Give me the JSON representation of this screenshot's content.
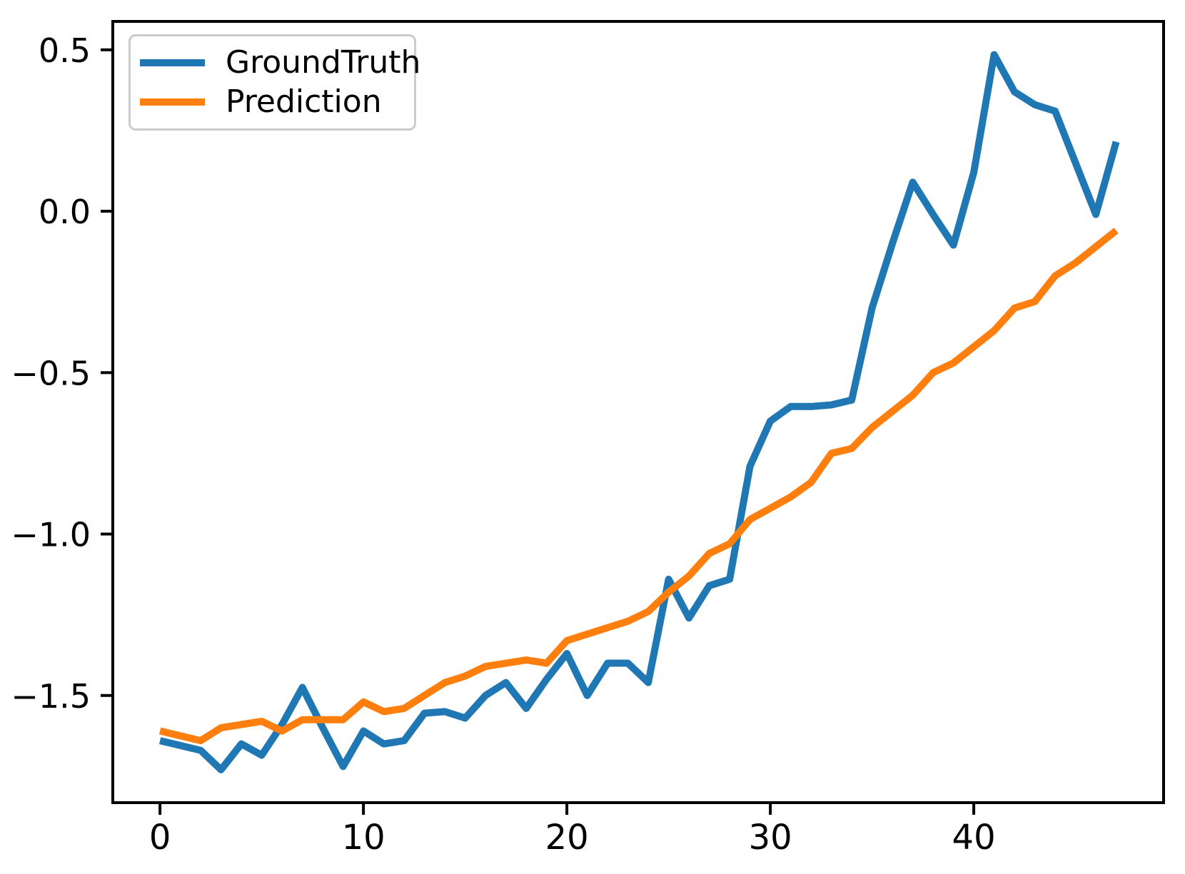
{
  "figure": {
    "background": "#ffffff",
    "axis_color": "#000000",
    "tick_label_color": "#000000"
  },
  "chart_data": {
    "type": "line",
    "title": "",
    "xlabel": "",
    "ylabel": "",
    "grid": false,
    "legend_position": "upper left",
    "x": [
      0,
      1,
      2,
      3,
      4,
      5,
      6,
      7,
      8,
      9,
      10,
      11,
      12,
      13,
      14,
      15,
      16,
      17,
      18,
      19,
      20,
      21,
      22,
      23,
      24,
      25,
      26,
      27,
      28,
      29,
      30,
      31,
      32,
      33,
      34,
      35,
      36,
      37,
      38,
      39,
      40,
      41,
      42,
      43,
      44,
      45,
      46,
      47
    ],
    "series": [
      {
        "name": "GroundTruth",
        "color": "#1f77b4",
        "values": [
          -1.64,
          -1.655,
          -1.67,
          -1.73,
          -1.65,
          -1.685,
          -1.59,
          -1.475,
          -1.6,
          -1.72,
          -1.61,
          -1.65,
          -1.64,
          -1.555,
          -1.55,
          -1.57,
          -1.5,
          -1.46,
          -1.54,
          -1.45,
          -1.37,
          -1.5,
          -1.4,
          -1.4,
          -1.46,
          -1.14,
          -1.26,
          -1.16,
          -1.14,
          -0.79,
          -0.65,
          -0.605,
          -0.605,
          -0.6,
          -0.585,
          -0.3,
          -0.1,
          0.09,
          -0.01,
          -0.105,
          0.12,
          0.485,
          0.37,
          0.33,
          0.31,
          0.15,
          -0.01,
          0.215
        ]
      },
      {
        "name": "Prediction",
        "color": "#ff7f0e",
        "values": [
          -1.61,
          -1.625,
          -1.64,
          -1.6,
          -1.59,
          -1.58,
          -1.61,
          -1.575,
          -1.575,
          -1.575,
          -1.52,
          -1.55,
          -1.54,
          -1.5,
          -1.46,
          -1.44,
          -1.41,
          -1.4,
          -1.39,
          -1.4,
          -1.33,
          -1.31,
          -1.29,
          -1.27,
          -1.24,
          -1.18,
          -1.13,
          -1.06,
          -1.03,
          -0.955,
          -0.92,
          -0.885,
          -0.84,
          -0.75,
          -0.735,
          -0.67,
          -0.62,
          -0.57,
          -0.5,
          -0.47,
          -0.42,
          -0.37,
          -0.3,
          -0.28,
          -0.2,
          -0.16,
          -0.11,
          -0.06
        ]
      }
    ],
    "xlim": [
      -2.32,
      49.33
    ],
    "ylim": [
      -1.832,
      0.588
    ],
    "xticks": [
      0,
      10,
      20,
      30,
      40
    ],
    "xtick_labels": [
      "0",
      "10",
      "20",
      "30",
      "40"
    ],
    "yticks": [
      0.5,
      0.0,
      -0.5,
      -1.0,
      -1.5
    ],
    "ytick_labels": [
      "0.5",
      "0.0",
      "−0.5",
      "−1.0",
      "−1.5"
    ]
  }
}
